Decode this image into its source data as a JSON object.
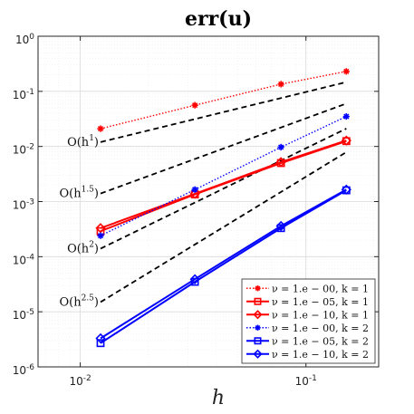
{
  "chart_data": {
    "type": "line",
    "title": "err(u)",
    "xlabel": "h",
    "ylabel": "",
    "x_scale": "log",
    "y_scale": "log",
    "xlim": [
      0.0065,
      0.21
    ],
    "ylim": [
      1e-06,
      1
    ],
    "grid": true,
    "legend_position": "bottom-right",
    "x_ticks": [
      {
        "value": 0.01,
        "label_base": "10",
        "label_exp": "-2"
      },
      {
        "value": 0.1,
        "label_base": "10",
        "label_exp": "-1"
      }
    ],
    "y_ticks": [
      {
        "value": 1,
        "label_base": "10",
        "label_exp": "0"
      },
      {
        "value": 0.1,
        "label_base": "10",
        "label_exp": "-1"
      },
      {
        "value": 0.01,
        "label_base": "10",
        "label_exp": "-2"
      },
      {
        "value": 0.001,
        "label_base": "10",
        "label_exp": "-3"
      },
      {
        "value": 0.0001,
        "label_base": "10",
        "label_exp": "-4"
      },
      {
        "value": 1e-05,
        "label_base": "10",
        "label_exp": "-5"
      },
      {
        "value": 1e-06,
        "label_base": "10",
        "label_exp": "-6"
      }
    ],
    "x": [
      0.0123,
      0.0322,
      0.0775,
      0.151
    ],
    "series": [
      {
        "name": "ν = 1.e − 00, k = 1",
        "color": "#ff0000",
        "marker": "star",
        "line": "dotted",
        "values": [
          0.021,
          0.056,
          0.135,
          0.23
        ]
      },
      {
        "name": "ν = 1.e − 05, k = 1",
        "color": "#ff0000",
        "marker": "square",
        "line": "solid",
        "values": [
          0.00029,
          0.00135,
          0.005,
          0.0125
        ]
      },
      {
        "name": "ν = 1.e − 10, k = 1",
        "color": "#ff0000",
        "marker": "diamond",
        "line": "solid",
        "values": [
          0.00033,
          0.00138,
          0.0052,
          0.0128
        ]
      },
      {
        "name": "ν = 1.e − 00, k = 2",
        "color": "#0000ff",
        "marker": "star",
        "line": "dotted",
        "values": [
          0.00024,
          0.00165,
          0.0097,
          0.035
        ]
      },
      {
        "name": "ν = 1.e − 05, k = 2",
        "color": "#0000ff",
        "marker": "square",
        "line": "solid",
        "values": [
          2.7e-06,
          3.5e-05,
          0.00033,
          0.0016
        ]
      },
      {
        "name": "ν = 1.e − 10, k = 2",
        "color": "#0000ff",
        "marker": "diamond",
        "line": "solid",
        "values": [
          3.3e-06,
          3.9e-05,
          0.00036,
          0.00165
        ]
      }
    ],
    "reference_lines": [
      {
        "label_base": "O(h",
        "label_exp": "1",
        "label_close": ")",
        "x": [
          0.0123,
          0.151
        ],
        "y": [
          0.012,
          0.147
        ]
      },
      {
        "label_base": "O(h",
        "label_exp": "1.5",
        "label_close": ")",
        "x": [
          0.0123,
          0.151
        ],
        "y": [
          0.0014,
          0.06
        ]
      },
      {
        "label_base": "O(h",
        "label_exp": "2",
        "label_close": ")",
        "x": [
          0.0123,
          0.151
        ],
        "y": [
          0.00014,
          0.0211
        ]
      },
      {
        "label_base": "O(h",
        "label_exp": "2.5",
        "label_close": ")",
        "x": [
          0.0123,
          0.151
        ],
        "y": [
          1.5e-05,
          0.0079
        ]
      }
    ]
  }
}
